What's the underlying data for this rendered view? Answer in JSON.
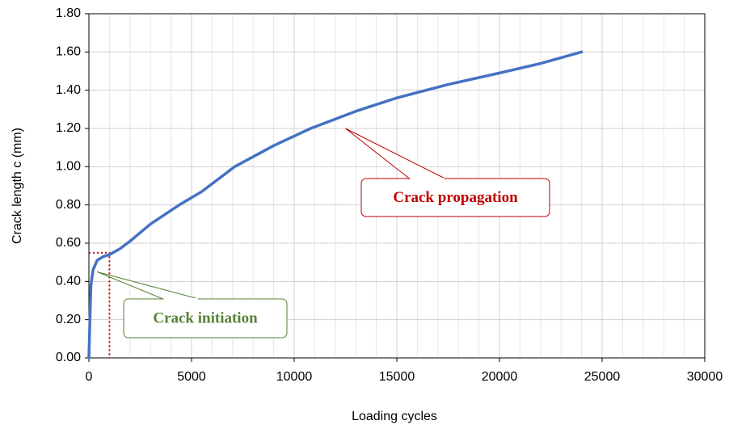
{
  "chart_data": {
    "type": "line",
    "x_label": "Loading cycles",
    "y_label": "Crack length c (mm)",
    "x": [
      0,
      50,
      100,
      200,
      400,
      700,
      1000,
      1500,
      2000,
      3000,
      4400,
      5500,
      7100,
      9000,
      10800,
      13000,
      15000,
      17500,
      20000,
      22000,
      24000
    ],
    "series": [
      {
        "name": "Crack length",
        "color": "#4472c4",
        "values": [
          0,
          0.2,
          0.38,
          0.46,
          0.51,
          0.53,
          0.54,
          0.57,
          0.61,
          0.7,
          0.8,
          0.87,
          1.0,
          1.11,
          1.2,
          1.29,
          1.36,
          1.43,
          1.49,
          1.54,
          1.6
        ]
      }
    ],
    "xlim": [
      0,
      30000
    ],
    "xticks": [
      0,
      5000,
      10000,
      15000,
      20000,
      25000,
      30000
    ],
    "ylim": [
      0,
      1.8
    ],
    "yticks": [
      {
        "value": 0,
        "label": "0.00"
      },
      {
        "value": 0.2,
        "label": "0.20"
      },
      {
        "value": 0.4,
        "label": "0.40"
      },
      {
        "value": 0.6,
        "label": "0.60"
      },
      {
        "value": 0.8,
        "label": "0.80"
      },
      {
        "value": 1.0,
        "label": "1.00"
      },
      {
        "value": 1.2,
        "label": "1.20"
      },
      {
        "value": 1.4,
        "label": "1.40"
      },
      {
        "value": 1.6,
        "label": "1.60"
      },
      {
        "value": 1.8,
        "label": "1.80"
      }
    ],
    "grid": true,
    "marker": {
      "x": 1000,
      "y": 0.55,
      "color": "#c00000"
    },
    "annotations": [
      {
        "text": "Crack initiation",
        "color": "#548235",
        "x": 400,
        "y": 0.45
      },
      {
        "text": "Crack propagation",
        "color": "#c00000",
        "x": 12500,
        "y": 1.2
      }
    ]
  }
}
